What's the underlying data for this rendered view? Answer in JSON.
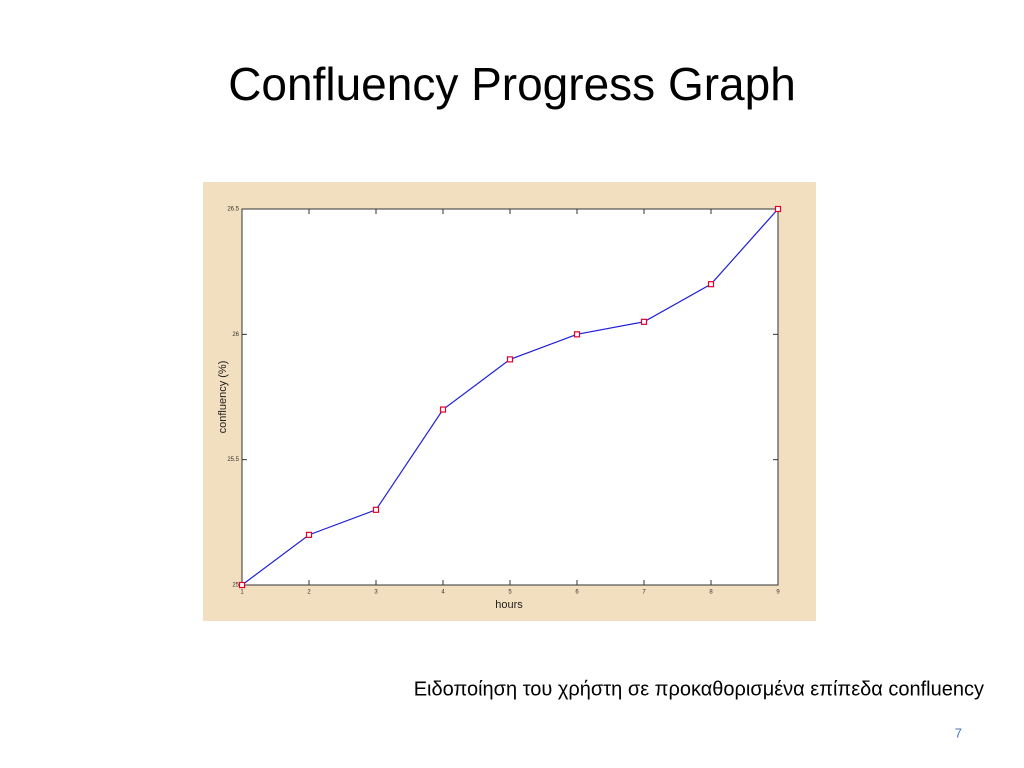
{
  "slide": {
    "title": "Confluency Progress Graph",
    "caption": "Ειδοποίηση του χρήστη σε προκαθορισμένα επίπεδα confluency",
    "page_number": 7
  },
  "chart_data": {
    "type": "line",
    "xlabel": "hours",
    "ylabel": "confluency (%)",
    "x": [
      1,
      2,
      3,
      4,
      5,
      6,
      7,
      8,
      9
    ],
    "series": [
      {
        "values": [
          25,
          25.2,
          25.3,
          25.7,
          25.9,
          26,
          26.05,
          26.2,
          26.5
        ],
        "color": "#1f1fd6",
        "marker_color": "#e0002a"
      }
    ],
    "xlim": [
      1,
      9
    ],
    "xticks": [
      1,
      2,
      3,
      4,
      5,
      6,
      7,
      8,
      9
    ],
    "ylim": [
      25,
      26.5
    ],
    "yticks": [
      25,
      25.5,
      26,
      26.5
    ],
    "grid": false
  }
}
